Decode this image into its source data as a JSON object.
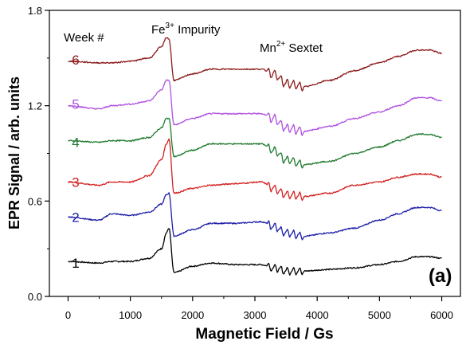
{
  "chart_data": {
    "type": "line",
    "xlabel": "Magnetic Field / Gs",
    "ylabel": "EPR Signal / arb. units",
    "xlim": [
      -300,
      6300
    ],
    "ylim": [
      0.0,
      1.8
    ],
    "xticks": [
      0,
      1000,
      2000,
      3000,
      4000,
      5000,
      6000
    ],
    "xtick_labels": [
      "0",
      "1000",
      "2000",
      "3000",
      "4000",
      "5000",
      "6000"
    ],
    "yticks": [
      0.0,
      0.6,
      1.2,
      1.8
    ],
    "ytick_labels": [
      "0.0",
      "0.6",
      "1.2",
      "1.8"
    ],
    "grid": false,
    "legend_title": "Week #",
    "panel_label": "(a)",
    "annotations": {
      "fe_base": "Fe",
      "fe_sup": "3+",
      "fe_rest": " Impurity",
      "mn_base": "Mn",
      "mn_sup": "2+",
      "mn_rest": " Sextet"
    },
    "series": [
      {
        "name": "1",
        "color": "#000000",
        "offset": 0.0,
        "x": [
          0,
          500,
          700,
          1000,
          1300,
          1500,
          1580,
          1620,
          1700,
          2000,
          2300,
          2700,
          3100,
          3300,
          3500,
          3800,
          4200,
          4600,
          5000,
          5300,
          5600,
          5800,
          6000
        ],
        "y": [
          0.22,
          0.21,
          0.22,
          0.22,
          0.24,
          0.3,
          0.4,
          0.43,
          0.15,
          0.19,
          0.21,
          0.2,
          0.2,
          0.18,
          0.16,
          0.16,
          0.17,
          0.18,
          0.2,
          0.22,
          0.25,
          0.25,
          0.24
        ]
      },
      {
        "name": "2",
        "color": "#1f1fa8",
        "offset": 0.28,
        "x": [
          0,
          500,
          700,
          1000,
          1300,
          1500,
          1580,
          1620,
          1700,
          2000,
          2300,
          2700,
          3100,
          3300,
          3500,
          3800,
          4200,
          4600,
          5000,
          5300,
          5600,
          5800,
          6000
        ],
        "y": [
          0.5,
          0.48,
          0.52,
          0.51,
          0.53,
          0.58,
          0.64,
          0.65,
          0.38,
          0.42,
          0.46,
          0.46,
          0.47,
          0.44,
          0.4,
          0.38,
          0.4,
          0.43,
          0.48,
          0.52,
          0.56,
          0.56,
          0.54
        ]
      },
      {
        "name": "3",
        "color": "#d42020",
        "offset": 0.5,
        "x": [
          0,
          500,
          700,
          1000,
          1300,
          1500,
          1580,
          1620,
          1700,
          2000,
          2300,
          2700,
          3100,
          3300,
          3500,
          3800,
          4200,
          4600,
          5000,
          5300,
          5600,
          5800,
          6000
        ],
        "y": [
          0.72,
          0.7,
          0.72,
          0.72,
          0.76,
          0.86,
          0.96,
          0.99,
          0.65,
          0.68,
          0.7,
          0.71,
          0.72,
          0.68,
          0.64,
          0.63,
          0.65,
          0.7,
          0.72,
          0.75,
          0.77,
          0.77,
          0.75
        ]
      },
      {
        "name": "4",
        "color": "#1f7a2e",
        "offset": 0.75,
        "x": [
          0,
          500,
          700,
          1000,
          1300,
          1500,
          1580,
          1620,
          1700,
          2000,
          2300,
          2700,
          3100,
          3300,
          3500,
          3800,
          4200,
          4600,
          5000,
          5300,
          5600,
          5800,
          6000
        ],
        "y": [
          0.98,
          0.97,
          0.98,
          0.98,
          1.0,
          1.06,
          1.12,
          1.12,
          0.88,
          0.92,
          0.96,
          0.96,
          0.96,
          0.92,
          0.86,
          0.83,
          0.85,
          0.9,
          0.94,
          0.98,
          1.02,
          1.02,
          1.0
        ]
      },
      {
        "name": "5",
        "color": "#b050e0",
        "offset": 0.98,
        "x": [
          0,
          500,
          700,
          1000,
          1300,
          1500,
          1580,
          1620,
          1700,
          2000,
          2300,
          2700,
          3100,
          3300,
          3500,
          3800,
          4200,
          4600,
          5000,
          5300,
          5600,
          5800,
          6000
        ],
        "y": [
          1.2,
          1.18,
          1.2,
          1.21,
          1.23,
          1.3,
          1.36,
          1.36,
          1.08,
          1.12,
          1.15,
          1.15,
          1.15,
          1.12,
          1.06,
          1.04,
          1.07,
          1.12,
          1.16,
          1.2,
          1.25,
          1.25,
          1.23
        ]
      },
      {
        "name": "6",
        "color": "#8b1a1a",
        "offset": 1.24,
        "x": [
          0,
          500,
          700,
          1000,
          1300,
          1500,
          1580,
          1620,
          1700,
          2000,
          2300,
          2700,
          3100,
          3300,
          3500,
          3800,
          4200,
          4600,
          5000,
          5300,
          5600,
          5800,
          6000
        ],
        "y": [
          1.48,
          1.47,
          1.47,
          1.48,
          1.5,
          1.57,
          1.63,
          1.62,
          1.36,
          1.4,
          1.43,
          1.43,
          1.43,
          1.4,
          1.34,
          1.32,
          1.36,
          1.42,
          1.47,
          1.51,
          1.55,
          1.55,
          1.53
        ]
      }
    ],
    "week_label_y": [
      0.21,
      0.5,
      0.72,
      0.97,
      1.21,
      1.49
    ],
    "mn_sextet": {
      "x_start": 3240,
      "x_end": 3740,
      "lines": 6
    }
  }
}
